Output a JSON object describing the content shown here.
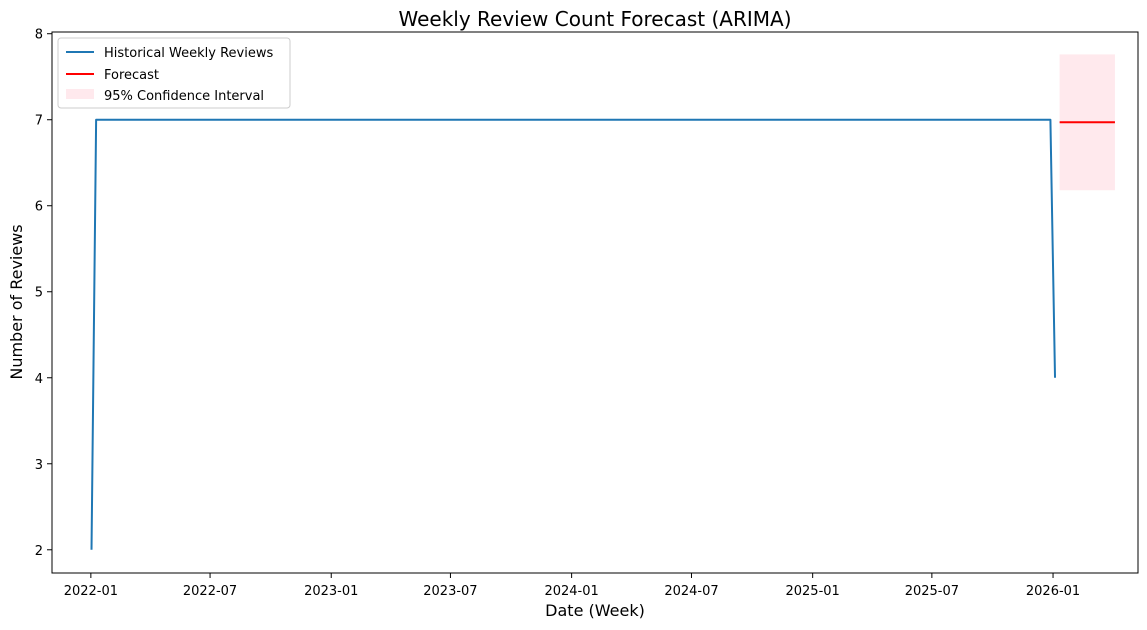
{
  "chart_data": {
    "type": "line",
    "title": "Weekly Review Count Forecast (ARIMA)",
    "xlabel": "Date (Week)",
    "ylabel": "Number of Reviews",
    "x_range": [
      "2021-11-03",
      "2026-05-10"
    ],
    "ylim": [
      1.73,
      8.02
    ],
    "x_ticks": [
      "2022-01",
      "2022-07",
      "2023-01",
      "2023-07",
      "2024-01",
      "2024-07",
      "2025-01",
      "2025-07",
      "2026-01"
    ],
    "y_ticks": [
      2,
      3,
      4,
      5,
      6,
      7,
      8
    ],
    "grid": false,
    "legend_position": "upper-left",
    "series": [
      {
        "name": "Historical Weekly Reviews",
        "color": "#1f77b4",
        "x": [
          "2022-01-02",
          "2022-01-09",
          "2025-12-28",
          "2026-01-04"
        ],
        "y": [
          2,
          7,
          7,
          4
        ]
      },
      {
        "name": "Forecast",
        "color": "#ff0000",
        "x": [
          "2026-01-11",
          "2026-04-05"
        ],
        "y": [
          6.97,
          6.97
        ]
      }
    ],
    "confidence_interval": {
      "name": "95% Confidence Interval",
      "color": "#ffc0cb",
      "x": [
        "2026-01-11",
        "2026-04-05"
      ],
      "lower": [
        6.18,
        6.18
      ],
      "upper": [
        7.76,
        7.76
      ]
    }
  }
}
